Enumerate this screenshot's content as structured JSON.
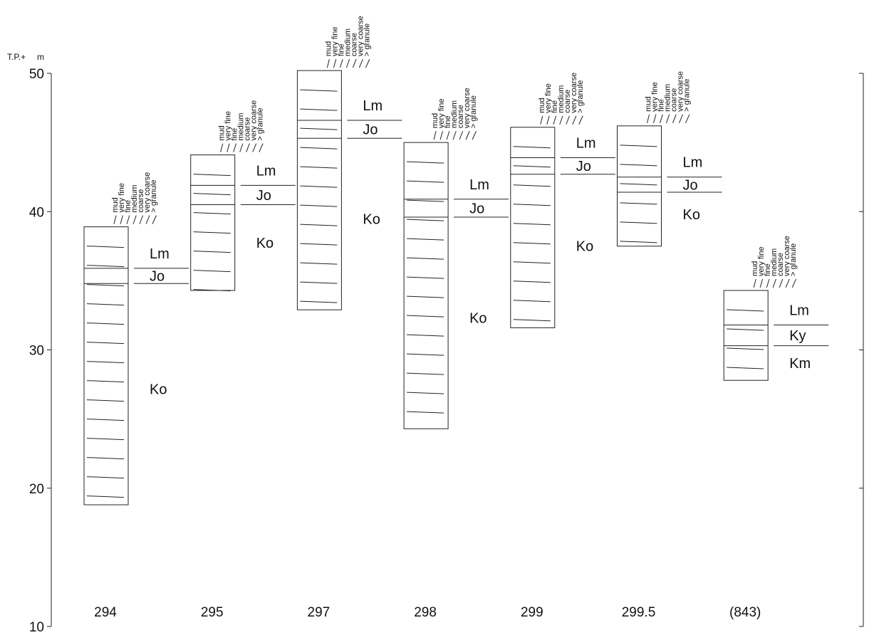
{
  "axis": {
    "label": "T.P.+",
    "unit": "m",
    "ylim": [
      10,
      50
    ],
    "yticks": [
      10,
      20,
      30,
      40,
      50
    ]
  },
  "grain_sizes": [
    "mud",
    "very fine",
    "fine",
    "medium",
    "coarse",
    "very coarse",
    "> granule"
  ],
  "columns": [
    {
      "name": "294",
      "top": 38.9,
      "bottom": 18.8,
      "units": [
        {
          "label": "Lm",
          "top": 38.9
        },
        {
          "label": "Jo",
          "top": 35.9
        },
        {
          "label": "Ko",
          "top": 34.8
        }
      ]
    },
    {
      "name": "295",
      "top": 44.1,
      "bottom": 34.3,
      "units": [
        {
          "label": "Lm",
          "top": 44.1
        },
        {
          "label": "Jo",
          "top": 41.9
        },
        {
          "label": "Ko",
          "top": 40.5
        }
      ]
    },
    {
      "name": "297",
      "top": 50.2,
      "bottom": 32.9,
      "units": [
        {
          "label": "Lm",
          "top": 50.2
        },
        {
          "label": "Jo",
          "top": 46.6
        },
        {
          "label": "Ko",
          "top": 45.3
        }
      ]
    },
    {
      "name": "298",
      "top": 45.0,
      "bottom": 24.3,
      "units": [
        {
          "label": "Lm",
          "top": 45.0
        },
        {
          "label": "Jo",
          "top": 40.9
        },
        {
          "label": "Ko",
          "top": 39.6
        }
      ]
    },
    {
      "name": "299",
      "top": 46.1,
      "bottom": 31.6,
      "units": [
        {
          "label": "Lm",
          "top": 46.1
        },
        {
          "label": "Jo",
          "top": 43.9
        },
        {
          "label": "Ko",
          "top": 42.7
        }
      ]
    },
    {
      "name": "299.5",
      "top": 46.2,
      "bottom": 37.5,
      "units": [
        {
          "label": "Lm",
          "top": 46.2
        },
        {
          "label": "Jo",
          "top": 42.5
        },
        {
          "label": "Ko",
          "top": 41.4
        }
      ]
    },
    {
      "name": "(843)",
      "top": 34.3,
      "bottom": 27.8,
      "units": [
        {
          "label": "Lm",
          "top": 34.3
        },
        {
          "label": "Ky",
          "top": 31.8
        },
        {
          "label": "Km",
          "top": 30.3
        }
      ]
    }
  ]
}
